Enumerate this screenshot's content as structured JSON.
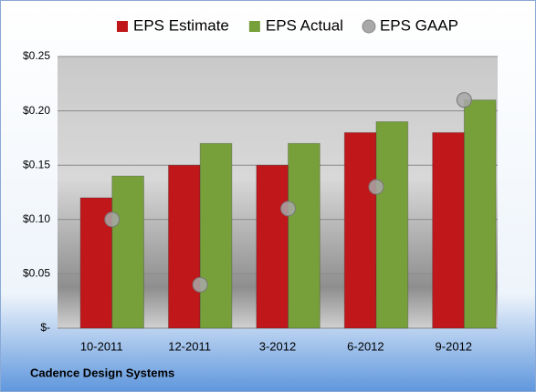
{
  "chart_data": {
    "type": "bar",
    "caption": "Cadence Design Systems",
    "categories": [
      "10-2011",
      "12-2011",
      "3-2012",
      "6-2012",
      "9-2012"
    ],
    "series": [
      {
        "name": "EPS Estimate",
        "color": "#c0171b",
        "marker": "bar",
        "values": [
          0.12,
          0.15,
          0.15,
          0.18,
          0.18
        ]
      },
      {
        "name": "EPS Actual",
        "color": "#77a03a",
        "marker": "bar",
        "values": [
          0.14,
          0.17,
          0.17,
          0.19,
          0.21
        ]
      },
      {
        "name": "EPS GAAP",
        "color": "#a8a8a8",
        "marker": "circle",
        "values": [
          0.1,
          0.04,
          0.11,
          0.13,
          0.21
        ]
      }
    ],
    "ylim": [
      0,
      0.25
    ],
    "yticks": [
      {
        "value": 0,
        "label": "$-"
      },
      {
        "value": 0.05,
        "label": "$0.05"
      },
      {
        "value": 0.1,
        "label": "$0.10"
      },
      {
        "value": 0.15,
        "label": "$0.15"
      },
      {
        "value": 0.2,
        "label": "$0.20"
      },
      {
        "value": 0.25,
        "label": "$0.25"
      }
    ],
    "grid": true
  }
}
